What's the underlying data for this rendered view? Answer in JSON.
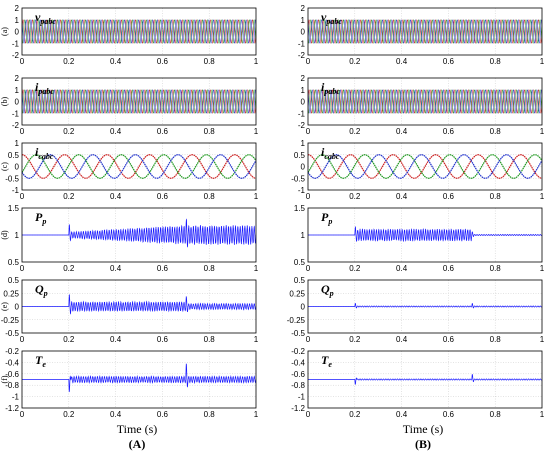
{
  "colors": {
    "phase_a": "#cc2222",
    "phase_b": "#229922",
    "phase_c": "#2233cc",
    "blue": "#1a1aff",
    "grid": "#c8c8c8",
    "frame": "#000000"
  },
  "xlabel": "Time (s)",
  "columns": [
    {
      "id": "A",
      "label": "(A)"
    },
    {
      "id": "B",
      "label": "(B)"
    }
  ],
  "rows": [
    {
      "id": "a",
      "label": "(a)",
      "signal": "v",
      "subscript": "pabc"
    },
    {
      "id": "b",
      "label": "(b)",
      "signal": "i",
      "subscript": "pabc"
    },
    {
      "id": "c",
      "label": "(c)",
      "signal": "i",
      "subscript": "cabc"
    },
    {
      "id": "d",
      "label": "(d)",
      "signal": "P",
      "subscript": "p"
    },
    {
      "id": "e",
      "label": "(e)",
      "signal": "Q",
      "subscript": "p"
    },
    {
      "id": "f",
      "label": "(f)",
      "signal": "T",
      "subscript": "e"
    }
  ],
  "chart_data": [
    {
      "panel": "A-a",
      "type": "line",
      "signal": "v_pabc",
      "xlim": [
        0,
        1
      ],
      "ylim": [
        -2,
        2
      ],
      "yticks": [
        "2",
        "1",
        "0",
        "-1",
        "-2"
      ],
      "xticks": [
        "0",
        "0.2",
        "0.4",
        "0.6",
        "0.8",
        "1"
      ],
      "series": [
        {
          "values_desc": "three-phase sinusoid, amplitude 1"
        }
      ],
      "grid": true
    },
    {
      "panel": "A-b",
      "type": "line",
      "signal": "i_pabc",
      "xlim": [
        0,
        1
      ],
      "ylim": [
        -2,
        2
      ],
      "yticks": [
        "2",
        "1",
        "0",
        "-1",
        "-2"
      ],
      "xticks": [
        "0",
        "0.2",
        "0.4",
        "0.6",
        "0.8",
        "1"
      ],
      "series": [
        {
          "values_desc": "three-phase sinusoid, amplitude 1"
        }
      ],
      "grid": true
    },
    {
      "panel": "A-c",
      "type": "line",
      "signal": "i_cabc",
      "xlim": [
        0,
        1
      ],
      "ylim": [
        -1,
        1
      ],
      "yticks": [
        "1",
        "0.5",
        "0",
        "-0.5",
        "-1"
      ],
      "xticks": [
        "0",
        "0.2",
        "0.4",
        "0.6",
        "0.8",
        "1"
      ],
      "series": [
        {
          "values_desc": "three-phase sinusoid, amplitude 0.5, ~5.5 cycles"
        }
      ],
      "grid": true
    },
    {
      "panel": "A-d",
      "type": "line",
      "signal": "P_p",
      "xlim": [
        0,
        1
      ],
      "ylim": [
        0.5,
        1.5
      ],
      "yticks": [
        "1.5",
        "1",
        "0.5"
      ],
      "xticks": [
        "0",
        "0.2",
        "0.4",
        "0.6",
        "0.8",
        "1"
      ],
      "events": [
        0.2,
        0.7
      ],
      "baseline": 1.0,
      "oscillation": [
        0.05,
        0.16
      ],
      "grid": true
    },
    {
      "panel": "A-e",
      "type": "line",
      "signal": "Q_p",
      "xlim": [
        0,
        1
      ],
      "ylim": [
        -0.5,
        0.5
      ],
      "yticks": [
        "0.5",
        "0.25",
        "0",
        "-0.25",
        "-0.5"
      ],
      "xticks": [
        "0",
        "0.2",
        "0.4",
        "0.6",
        "0.8",
        "1"
      ],
      "events": [
        0.2,
        0.7
      ],
      "baseline": 0.0,
      "oscillation": [
        0.08,
        0.05
      ],
      "grid": true
    },
    {
      "panel": "A-f",
      "type": "line",
      "signal": "T_e",
      "xlim": [
        0,
        1
      ],
      "ylim": [
        -1.2,
        -0.2
      ],
      "yticks": [
        "-0.2",
        "-0.4",
        "-0.6",
        "-0.8",
        "-1",
        "-1.2"
      ],
      "xticks": [
        "0",
        "0.2",
        "0.4",
        "0.6",
        "0.8",
        "1"
      ],
      "events": [
        0.2,
        0.7
      ],
      "baseline": -0.7,
      "oscillation": [
        0.05,
        0.05
      ],
      "grid": true
    },
    {
      "panel": "B-a",
      "type": "line",
      "signal": "v_pabc",
      "xlim": [
        0,
        1
      ],
      "ylim": [
        -2,
        2
      ],
      "yticks": [
        "2",
        "1",
        "0",
        "-1",
        "-2"
      ],
      "xticks": [
        "0",
        "0.2",
        "0.4",
        "0.6",
        "0.8",
        "1"
      ],
      "series": [
        {
          "values_desc": "three-phase sinusoid, amplitude 1"
        }
      ],
      "grid": true
    },
    {
      "panel": "B-b",
      "type": "line",
      "signal": "i_pabc",
      "xlim": [
        0,
        1
      ],
      "ylim": [
        -2,
        2
      ],
      "yticks": [
        "2",
        "1",
        "0",
        "-1",
        "-2"
      ],
      "xticks": [
        "0",
        "0.2",
        "0.4",
        "0.6",
        "0.8",
        "1"
      ],
      "series": [
        {
          "values_desc": "three-phase sinusoid, amplitude 1"
        }
      ],
      "grid": true
    },
    {
      "panel": "B-c",
      "type": "line",
      "signal": "i_cabc",
      "xlim": [
        0,
        1
      ],
      "ylim": [
        -1,
        1
      ],
      "yticks": [
        "1",
        "0.5",
        "0",
        "-0.5",
        "-1"
      ],
      "xticks": [
        "0",
        "0.2",
        "0.4",
        "0.6",
        "0.8",
        "1"
      ],
      "series": [
        {
          "values_desc": "three-phase sinusoid, amplitude 0.5, ~5.5 cycles"
        }
      ],
      "grid": true
    },
    {
      "panel": "B-d",
      "type": "line",
      "signal": "P_p",
      "xlim": [
        0,
        1
      ],
      "ylim": [
        0.5,
        1.5
      ],
      "yticks": [
        "1.5",
        "1",
        "0.5"
      ],
      "xticks": [
        "0",
        "0.2",
        "0.4",
        "0.6",
        "0.8",
        "1"
      ],
      "events": [
        0.2,
        0.7
      ],
      "baseline": 1.0,
      "oscillation": [
        0.1,
        0.01
      ],
      "grid": true
    },
    {
      "panel": "B-e",
      "type": "line",
      "signal": "Q_p",
      "xlim": [
        0,
        1
      ],
      "ylim": [
        -0.5,
        0.5
      ],
      "yticks": [
        "0.5",
        "0.25",
        "0",
        "-0.25",
        "-0.5"
      ],
      "xticks": [
        "0",
        "0.2",
        "0.4",
        "0.6",
        "0.8",
        "1"
      ],
      "events": [
        0.2,
        0.7
      ],
      "baseline": 0.0,
      "oscillation": [
        0.01,
        0.01
      ],
      "grid": true
    },
    {
      "panel": "B-f",
      "type": "line",
      "signal": "T_e",
      "xlim": [
        0,
        1
      ],
      "ylim": [
        -1.2,
        -0.2
      ],
      "yticks": [
        "-0.2",
        "-0.4",
        "-0.6",
        "-0.8",
        "-1",
        "-1.2"
      ],
      "xticks": [
        "0",
        "0.2",
        "0.4",
        "0.6",
        "0.8",
        "1"
      ],
      "events": [
        0.2,
        0.7
      ],
      "baseline": -0.7,
      "oscillation": [
        0.01,
        0.01
      ],
      "grid": true
    }
  ]
}
